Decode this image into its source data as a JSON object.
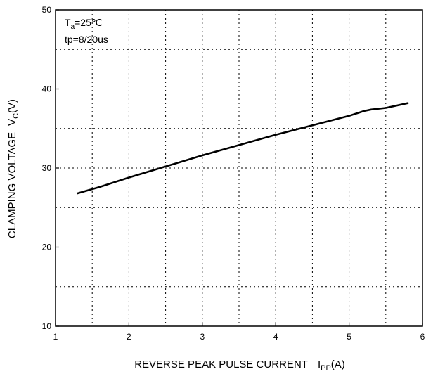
{
  "chart_data": {
    "type": "line",
    "title": "",
    "xlabel": "REVERSE PEAK PULSE CURRENT",
    "xlabel_symbol": "I",
    "xlabel_subscript": "PP",
    "xlabel_unit": "(A)",
    "ylabel": "CLAMPING VOLTAGE",
    "ylabel_symbol": "V",
    "ylabel_subscript": "C",
    "ylabel_unit": "(V)",
    "xlim": [
      1,
      6
    ],
    "ylim": [
      10,
      50
    ],
    "x_ticks": [
      "1",
      "2",
      "3",
      "4",
      "5",
      "6"
    ],
    "y_ticks": [
      "10",
      "20",
      "30",
      "40",
      "50"
    ],
    "grid": "dotted",
    "annotations": {
      "line1_main": "T",
      "line1_sub": "a",
      "line1_rest": "=25℃",
      "line2": "tp=8/20us"
    },
    "series": [
      {
        "name": "",
        "color": "#000000",
        "x": [
          1.3,
          1.6,
          2.0,
          2.5,
          3.0,
          3.5,
          4.0,
          4.5,
          5.0,
          5.2,
          5.3,
          5.5,
          5.8
        ],
        "y": [
          26.8,
          27.6,
          28.8,
          30.2,
          31.6,
          32.9,
          34.2,
          35.4,
          36.6,
          37.2,
          37.4,
          37.6,
          38.2
        ]
      }
    ]
  }
}
